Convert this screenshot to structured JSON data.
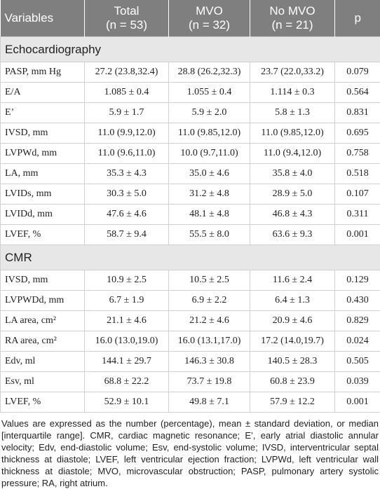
{
  "header": {
    "cells": [
      {
        "label": "Variables"
      },
      {
        "label": "Total",
        "sub": "(n = 53)"
      },
      {
        "label": "MVO",
        "sub": "(n = 32)"
      },
      {
        "label": "No MVO",
        "sub": "(n = 21)"
      },
      {
        "label": "p"
      }
    ]
  },
  "sections": [
    {
      "title": "Echocardiography",
      "rows": [
        [
          "PASP, mm Hg",
          "27.2 (23.8,32.4)",
          "28.8 (26.2,32.3)",
          "23.7 (22.0,33.2)",
          "0.079"
        ],
        [
          "E/A",
          "1.085 ± 0.4",
          "1.055 ± 0.4",
          "1.114 ± 0.3",
          "0.564"
        ],
        [
          "E’",
          "5.9 ± 1.7",
          "5.9 ± 2.0",
          "5.8 ± 1.3",
          "0.831"
        ],
        [
          "IVSD, mm",
          "11.0 (9.9,12.0)",
          "11.0 (9.85,12.0)",
          "11.0 (9.85,12.0)",
          "0.695"
        ],
        [
          "LVPWd, mm",
          "11.0 (9.6,11.0)",
          "10.0 (9.7,11.0)",
          "11.0 (9.4,12.0)",
          "0.758"
        ],
        [
          "LA, mm",
          "35.3 ± 4.3",
          "35.0 ± 4.6",
          "35.8 ± 4.0",
          "0.518"
        ],
        [
          "LVIDs, mm",
          "30.3 ± 5.0",
          "31.2 ± 4.8",
          "28.9 ± 5.0",
          "0.107"
        ],
        [
          "LVIDd, mm",
          "47.6 ± 4.6",
          "48.1 ± 4.8",
          "46.8 ± 4.3",
          "0.311"
        ],
        [
          "LVEF, %",
          "58.7 ± 9.4",
          "55.5 ± 8.0",
          "63.6 ± 9.3",
          "0.001"
        ]
      ]
    },
    {
      "title": "CMR",
      "rows": [
        [
          "IVSD, mm",
          "10.9 ± 2.5",
          "10.5 ± 2.5",
          "11.6 ± 2.4",
          "0.129"
        ],
        [
          "LVPWDd, mm",
          "6.7 ± 1.9",
          "6.9 ± 2.2",
          "6.4 ± 1.3",
          "0.430"
        ],
        [
          "LA area, cm²",
          "21.1 ± 4.6",
          "21.2 ± 4.6",
          "20.9 ± 4.6",
          "0.829"
        ],
        [
          "RA area, cm²",
          "16.0 (13.0,19.0)",
          "16.0 (13.1,17.0)",
          "17.2 (14.0,19.7)",
          "0.024"
        ],
        [
          "Edv, ml",
          "144.1 ± 29.7",
          "146.3 ± 30.8",
          "140.5 ± 28.3",
          "0.505"
        ],
        [
          "Esv, ml",
          "68.8 ± 22.2",
          "73.7 ± 19.8",
          "60.8 ± 23.9",
          "0.039"
        ],
        [
          "LVEF, %",
          "52.9 ± 10.1",
          "49.8 ± 7.1",
          "57.9 ± 12.2",
          "0.001"
        ]
      ]
    }
  ],
  "footnote": "Values are expressed as the number (percentage), mean ± standard deviation, or median [interquartile range]. CMR, cardiac magnetic resonance; E’, early atrial diastolic annular velocity; Edv, end-diastolic volume; Esv, end-systolic volume; IVSD, interventricular septal thickness at diastole; LVEF, left ventricular ejection fraction; LVPWd, left ventricular wall thickness at diastole; MVO, microvascular obstruction; PASP, pulmonary artery systolic pressure; RA, right atrium."
}
